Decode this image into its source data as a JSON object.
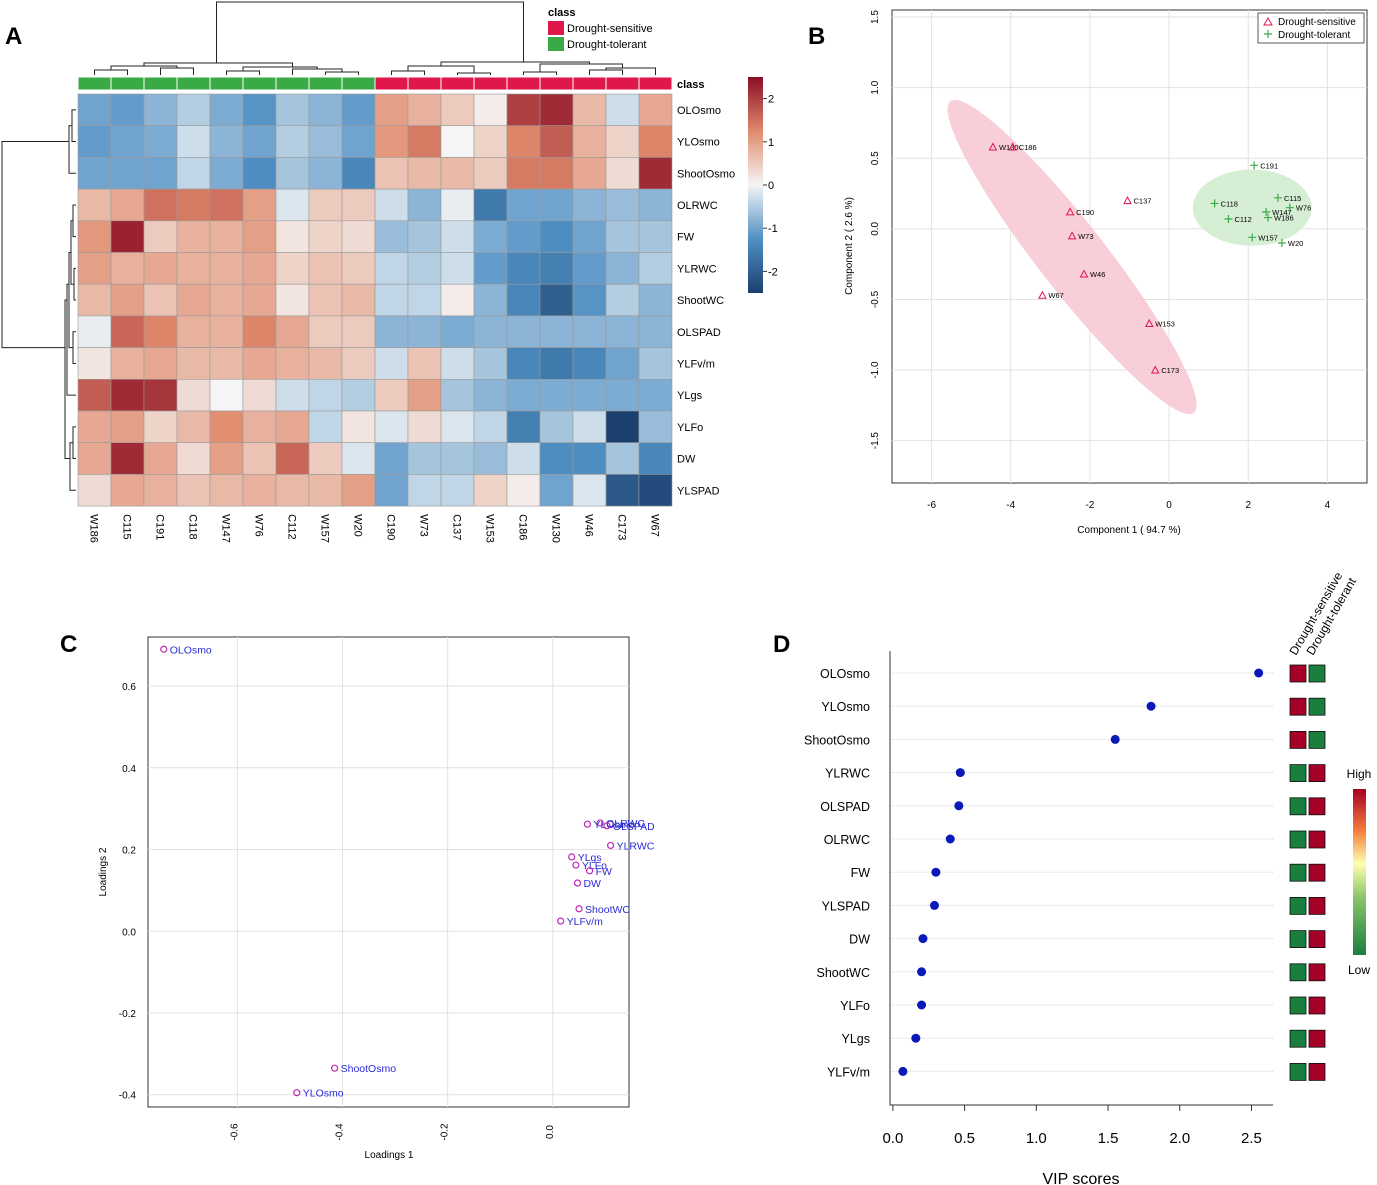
{
  "figure": {
    "panel_labels": [
      "A",
      "B",
      "C",
      "D"
    ],
    "colors": {
      "sensitive": "#e0174a",
      "tolerant": "#3aaa47",
      "heat_low": "#2166ac",
      "heat_mid": "#f7f7f7",
      "heat_high": "#a50f26",
      "vip_point": "#0a1ab8",
      "vip_high": "#a50026",
      "vip_low": "#1a7f3c"
    }
  },
  "chart_data": [
    {
      "panel": "A",
      "type": "heatmap",
      "title": "",
      "legend_title": "class",
      "legend_entries": [
        "Drought-sensitive",
        "Drought-tolerant"
      ],
      "class_row_label": "class",
      "columns": [
        "W186",
        "C115",
        "C191",
        "C118",
        "W147",
        "W76",
        "C112",
        "W157",
        "W20",
        "C190",
        "W73",
        "C137",
        "W153",
        "C186",
        "W130",
        "W46",
        "C173",
        "W67"
      ],
      "column_class": [
        1,
        1,
        1,
        1,
        1,
        1,
        1,
        1,
        1,
        0,
        0,
        0,
        0,
        0,
        0,
        0,
        0,
        0
      ],
      "rows": [
        "OLOsmo",
        "YLOsmo",
        "ShootOsmo",
        "OLRWC",
        "FW",
        "YLRWC",
        "ShootWC",
        "OLSPAD",
        "YLFv/m",
        "YLgs",
        "YLFo",
        "DW",
        "YLSPAD"
      ],
      "values": [
        [
          -1.0,
          -1.1,
          -0.8,
          -0.5,
          -0.9,
          -1.2,
          -0.6,
          -0.8,
          -1.1,
          1.0,
          0.8,
          0.5,
          0.1,
          2.0,
          2.2,
          0.7,
          -0.3,
          0.9
        ],
        [
          -1.1,
          -1.0,
          -0.9,
          -0.3,
          -0.8,
          -1.0,
          -0.5,
          -0.7,
          -1.0,
          1.1,
          1.4,
          0.0,
          0.4,
          1.3,
          1.7,
          0.8,
          0.4,
          1.3
        ],
        [
          -1.0,
          -1.0,
          -1.0,
          -0.4,
          -0.9,
          -1.3,
          -0.6,
          -0.8,
          -1.4,
          0.6,
          0.7,
          0.7,
          0.5,
          1.4,
          1.4,
          0.9,
          0.3,
          2.2
        ],
        [
          0.7,
          0.9,
          1.5,
          1.4,
          1.5,
          1.0,
          -0.2,
          0.5,
          0.5,
          -0.3,
          -0.8,
          -0.1,
          -1.6,
          -1.0,
          -1.0,
          -0.8,
          -0.7,
          -0.8
        ],
        [
          1.1,
          2.3,
          0.5,
          0.8,
          0.8,
          1.0,
          0.2,
          0.4,
          0.3,
          -0.7,
          -0.6,
          -0.3,
          -0.9,
          -1.1,
          -1.3,
          -1.0,
          -0.6,
          -0.6
        ],
        [
          1.0,
          0.8,
          0.9,
          0.8,
          0.8,
          0.9,
          0.4,
          0.6,
          0.5,
          -0.4,
          -0.5,
          -0.3,
          -1.1,
          -1.4,
          -1.5,
          -1.1,
          -0.8,
          -0.5
        ],
        [
          0.7,
          1.0,
          0.6,
          0.9,
          0.8,
          0.9,
          0.2,
          0.6,
          0.7,
          -0.4,
          -0.4,
          0.1,
          -0.8,
          -1.4,
          -2.0,
          -1.2,
          -0.5,
          -0.8
        ],
        [
          -0.1,
          1.6,
          1.3,
          0.8,
          0.8,
          1.3,
          0.9,
          0.5,
          0.5,
          -0.8,
          -0.8,
          -0.9,
          -0.8,
          -0.8,
          -0.8,
          -0.8,
          -0.8,
          -0.8
        ],
        [
          0.2,
          0.8,
          0.9,
          0.7,
          0.7,
          0.9,
          0.8,
          0.7,
          0.5,
          -0.3,
          0.6,
          -0.3,
          -0.6,
          -1.4,
          -1.6,
          -1.4,
          -1.0,
          -0.6
        ],
        [
          1.7,
          2.2,
          2.1,
          0.3,
          0.0,
          0.3,
          -0.3,
          -0.4,
          -0.5,
          0.5,
          1.0,
          -0.6,
          -0.8,
          -0.9,
          -0.9,
          -0.9,
          -0.9,
          -0.9
        ],
        [
          0.9,
          1.0,
          0.4,
          0.7,
          1.2,
          0.8,
          0.9,
          -0.4,
          0.2,
          -0.2,
          0.3,
          -0.2,
          -0.4,
          -1.5,
          -0.6,
          -0.3,
          -2.6,
          -0.7
        ],
        [
          0.9,
          2.2,
          0.9,
          0.3,
          1.0,
          0.6,
          1.6,
          0.5,
          -0.2,
          -1.0,
          -0.6,
          -0.6,
          -0.7,
          -0.3,
          -1.3,
          -1.3,
          -0.6,
          -1.4
        ],
        [
          0.3,
          0.9,
          0.8,
          0.6,
          0.7,
          0.8,
          0.7,
          0.7,
          1.0,
          -1.0,
          -0.4,
          -0.4,
          0.4,
          0.1,
          -1.0,
          -0.2,
          -2.1,
          -2.3
        ]
      ],
      "colorbar_ticks": [
        "2",
        "1",
        "0",
        "-1",
        "-2"
      ],
      "colorbar_range": [
        -2.5,
        2.5
      ]
    },
    {
      "panel": "B",
      "type": "scatter",
      "title": "",
      "xlabel": "Component 1 ( 94.7 %)",
      "ylabel": "Component 2 ( 2.6 %)",
      "xlim": [
        -7,
        5
      ],
      "ylim": [
        -1.8,
        1.55
      ],
      "xticks": [
        -6,
        -4,
        -2,
        0,
        2,
        4
      ],
      "xtick_labels": [
        "-6",
        "-4",
        "-2",
        "0",
        "2",
        "4"
      ],
      "yticks": [
        -1.5,
        -1.0,
        -0.5,
        0.0,
        0.5,
        1.0,
        1.5
      ],
      "ytick_labels": [
        "-1.5",
        "-1.0",
        "-0.5",
        "0.0",
        "0.5",
        "1.0",
        "1.5"
      ],
      "legend": [
        "Drought-sensitive",
        "Drought-tolerant"
      ],
      "series": [
        {
          "name": "Drought-sensitive",
          "marker": "triangle",
          "points": [
            {
              "label": "W130",
              "x": -4.45,
              "y": 0.58
            },
            {
              "label": "C186",
              "x": -3.95,
              "y": 0.58
            },
            {
              "label": "C137",
              "x": -1.05,
              "y": 0.2
            },
            {
              "label": "C190",
              "x": -2.5,
              "y": 0.12
            },
            {
              "label": "W73",
              "x": -2.45,
              "y": -0.05
            },
            {
              "label": "W46",
              "x": -2.15,
              "y": -0.32
            },
            {
              "label": "W67",
              "x": -3.2,
              "y": -0.47
            },
            {
              "label": "W153",
              "x": -0.5,
              "y": -0.67
            },
            {
              "label": "C173",
              "x": -0.35,
              "y": -1.0
            }
          ]
        },
        {
          "name": "Drought-tolerant",
          "marker": "plus",
          "points": [
            {
              "label": "C191",
              "x": 2.15,
              "y": 0.45
            },
            {
              "label": "C118",
              "x": 1.15,
              "y": 0.18
            },
            {
              "label": "C115",
              "x": 2.75,
              "y": 0.22
            },
            {
              "label": "W147",
              "x": 2.45,
              "y": 0.12
            },
            {
              "label": "W76",
              "x": 3.05,
              "y": 0.15
            },
            {
              "label": "W186",
              "x": 2.5,
              "y": 0.08
            },
            {
              "label": "C112",
              "x": 1.5,
              "y": 0.07
            },
            {
              "label": "W157",
              "x": 2.1,
              "y": -0.06
            },
            {
              "label": "W20",
              "x": 2.85,
              "y": -0.1
            }
          ]
        }
      ],
      "ellipses": [
        {
          "group": "Drought-sensitive",
          "cx": -2.45,
          "cy": -0.2,
          "rx": 1.4,
          "ry": 0.85,
          "rotation_deg": -52
        },
        {
          "group": "Drought-tolerant",
          "cx": 2.1,
          "cy": 0.15,
          "rx": 1.5,
          "ry": 0.27,
          "rotation_deg": 0
        }
      ]
    },
    {
      "panel": "C",
      "type": "scatter",
      "title": "",
      "xlabel": "Loadings 1",
      "ylabel": "Loadings 2",
      "xlim": [
        -0.77,
        0.145
      ],
      "ylim": [
        -0.43,
        0.72
      ],
      "xticks": [
        -0.6,
        -0.4,
        -0.2,
        0.0
      ],
      "xtick_labels": [
        "-0.6",
        "-0.4",
        "-0.2",
        "0.0"
      ],
      "yticks": [
        -0.4,
        -0.2,
        0.0,
        0.2,
        0.4,
        0.6
      ],
      "ytick_labels": [
        "-0.4",
        "-0.2",
        "0.0",
        "0.2",
        "0.4",
        "0.6"
      ],
      "points": [
        {
          "label": "OLOsmo",
          "x": -0.74,
          "y": 0.69
        },
        {
          "label": "ShootOsmo",
          "x": -0.415,
          "y": -0.335
        },
        {
          "label": "YLOsmo",
          "x": -0.487,
          "y": -0.395
        },
        {
          "label": "OLRWC",
          "x": 0.09,
          "y": 0.265
        },
        {
          "label": "YLOsmo",
          "x": 0.066,
          "y": 0.262
        },
        {
          "label": "OLSPAD",
          "x": 0.103,
          "y": 0.258
        },
        {
          "label": "YLRWC",
          "x": 0.11,
          "y": 0.21
        },
        {
          "label": "YLgs",
          "x": 0.036,
          "y": 0.182
        },
        {
          "label": "YLFo",
          "x": 0.044,
          "y": 0.162
        },
        {
          "label": "FW",
          "x": 0.07,
          "y": 0.148
        },
        {
          "label": "DW",
          "x": 0.047,
          "y": 0.118
        },
        {
          "label": "ShootWC",
          "x": 0.05,
          "y": 0.055
        },
        {
          "label": "YLFv/m",
          "x": 0.015,
          "y": 0.025
        }
      ]
    },
    {
      "panel": "D",
      "type": "scatter",
      "title": "",
      "xlabel": "VIP scores",
      "xlim": [
        -0.02,
        2.65
      ],
      "xticks": [
        0.0,
        0.5,
        1.0,
        1.5,
        2.0,
        2.5
      ],
      "xtick_labels": [
        "0.0",
        "0.5",
        "1.0",
        "1.5",
        "2.0",
        "2.5"
      ],
      "categories": [
        "OLOsmo",
        "YLOsmo",
        "ShootOsmo",
        "YLRWC",
        "OLSPAD",
        "OLRWC",
        "FW",
        "YLSPAD",
        "DW",
        "ShootWC",
        "YLFo",
        "YLgs",
        "YLFv/m"
      ],
      "values": [
        2.55,
        1.8,
        1.55,
        0.47,
        0.46,
        0.4,
        0.3,
        0.29,
        0.21,
        0.2,
        0.2,
        0.16,
        0.07
      ],
      "group_labels": [
        "Drought-sensitive",
        "Drought-tolerant"
      ],
      "group_levels": [
        [
          "High",
          "Low"
        ],
        [
          "High",
          "Low"
        ],
        [
          "High",
          "Low"
        ],
        [
          "Low",
          "High"
        ],
        [
          "Low",
          "High"
        ],
        [
          "Low",
          "High"
        ],
        [
          "Low",
          "High"
        ],
        [
          "Low",
          "High"
        ],
        [
          "Low",
          "High"
        ],
        [
          "Low",
          "High"
        ],
        [
          "Low",
          "High"
        ],
        [
          "Low",
          "High"
        ],
        [
          "Low",
          "High"
        ]
      ],
      "colorbar_high": "High",
      "colorbar_low": "Low"
    }
  ]
}
